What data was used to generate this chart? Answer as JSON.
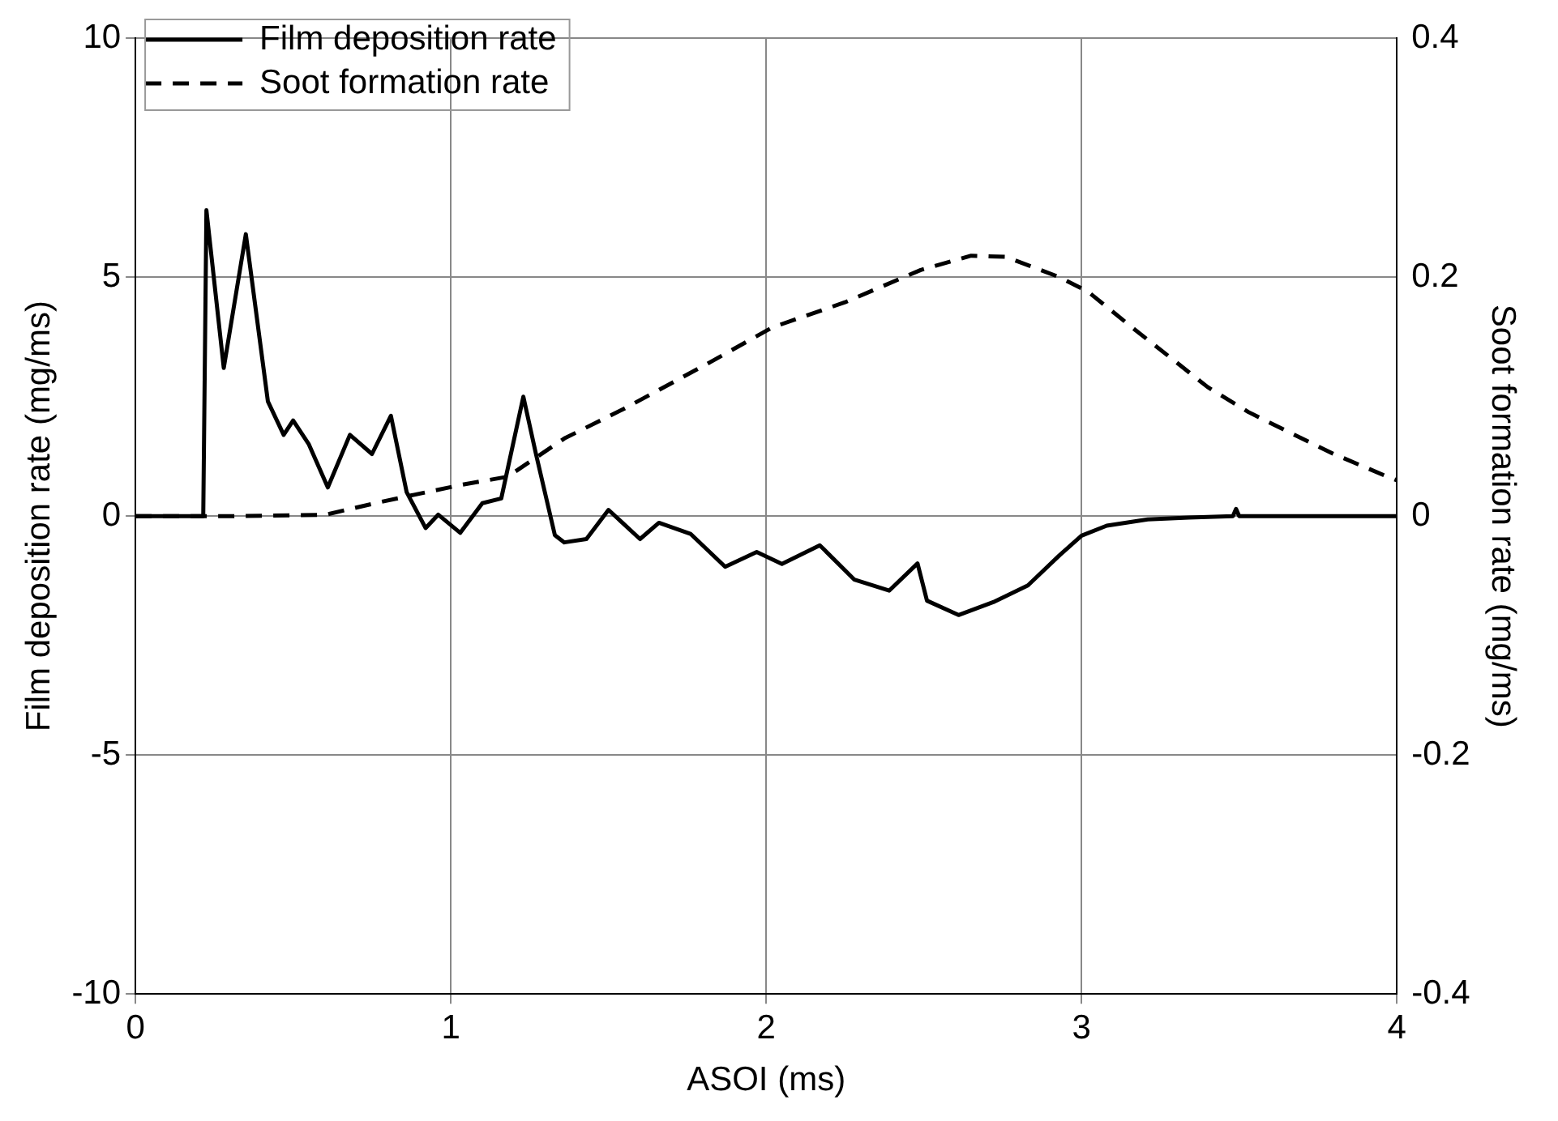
{
  "chart_data": {
    "type": "line",
    "xlabel": "ASOI (ms)",
    "ylabel": "Film deposition rate (mg/ms)",
    "y2label": "Soot formation rate (mg/ms)",
    "xlim": [
      0,
      4
    ],
    "xticks": [
      0,
      1,
      2,
      3,
      4
    ],
    "ylim": [
      -10,
      10
    ],
    "yticks": [
      -10,
      -5,
      0,
      5,
      10
    ],
    "y2lim": [
      -0.4,
      0.4
    ],
    "y2ticks": [
      -0.4,
      -0.2,
      0,
      0.2,
      0.4
    ],
    "grid": true,
    "legend": "top left",
    "marker": "none",
    "series": [
      {
        "name": "Film deposition rate",
        "color": "#000000",
        "line_style": "solid",
        "x": [
          0,
          0.21,
          0.215,
          0.225,
          0.28,
          0.35,
          0.42,
          0.47,
          0.5,
          0.55,
          0.61,
          0.68,
          0.75,
          0.81,
          0.86,
          0.92,
          0.96,
          1.03,
          1.1,
          1.16,
          1.23,
          1.27,
          1.33,
          1.36,
          1.43,
          1.5,
          1.6,
          1.66,
          1.76,
          1.87,
          1.97,
          2.05,
          2.17,
          2.28,
          2.39,
          2.48,
          2.51,
          2.61,
          2.72,
          2.83,
          2.93,
          3.0,
          3.08,
          3.21,
          3.34,
          3.48,
          3.49,
          3.5,
          4
        ],
        "values": [
          0,
          0,
          0,
          6.4,
          3.1,
          5.9,
          2.4,
          1.7,
          2.0,
          1.5,
          0.6,
          1.7,
          1.3,
          2.1,
          0.5,
          -0.25,
          0.03,
          -0.35,
          0.27,
          0.37,
          2.5,
          1.3,
          -0.4,
          -0.55,
          -0.48,
          0.13,
          -0.48,
          -0.14,
          -0.37,
          -1.06,
          -0.75,
          -1.0,
          -0.61,
          -1.33,
          -1.56,
          -0.99,
          -1.77,
          -2.07,
          -1.8,
          -1.45,
          -0.82,
          -0.41,
          -0.2,
          -0.07,
          -0.03,
          0,
          0.15,
          0,
          0
        ]
      },
      {
        "name": "Soot formation rate",
        "color": "#000000",
        "line_style": "dashed",
        "axis": "y2",
        "x": [
          0,
          0.31,
          0.6,
          0.78,
          1.03,
          1.18,
          1.36,
          1.55,
          1.81,
          2.02,
          2.25,
          2.49,
          2.65,
          2.76,
          2.93,
          3.02,
          3.16,
          3.29,
          3.4,
          3.53,
          3.66,
          3.8,
          3.97,
          4
        ],
        "values": [
          0,
          0,
          0.001,
          0.012,
          0.026,
          0.033,
          0.065,
          0.09,
          0.127,
          0.158,
          0.179,
          0.206,
          0.218,
          0.217,
          0.2,
          0.188,
          0.158,
          0.131,
          0.108,
          0.087,
          0.07,
          0.052,
          0.033,
          0.03
        ]
      }
    ]
  }
}
